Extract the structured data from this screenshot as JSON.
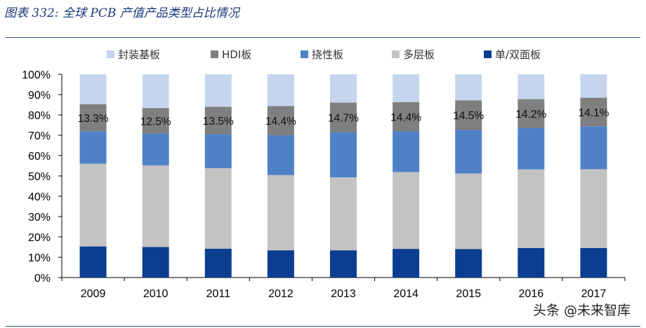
{
  "figure_title": "图表 332: 全球 PCB 产值产品类型占比情况",
  "watermark": "头条 @未来智库",
  "chart_data": {
    "type": "bar",
    "stacked": true,
    "categories": [
      "2009",
      "2010",
      "2011",
      "2012",
      "2013",
      "2014",
      "2015",
      "2016",
      "2017"
    ],
    "ylim": [
      0,
      100
    ],
    "yticks": [
      "0%",
      "10%",
      "20%",
      "30%",
      "40%",
      "50%",
      "60%",
      "70%",
      "80%",
      "90%",
      "100%"
    ],
    "legend_position": "top",
    "grid": false,
    "series": [
      {
        "name": "单/双面板",
        "color": "#0b3d91",
        "values": [
          15.3,
          15.0,
          14.2,
          13.4,
          13.4,
          14.1,
          14.0,
          14.5,
          14.5
        ]
      },
      {
        "name": "多层板",
        "color": "#c3c3c3",
        "values": [
          40.7,
          40.2,
          39.6,
          37.0,
          35.9,
          37.8,
          37.2,
          38.7,
          38.8
        ]
      },
      {
        "name": "挠性板",
        "color": "#4f81c7",
        "values": [
          16.0,
          15.7,
          16.7,
          19.6,
          22.1,
          20.0,
          21.5,
          20.4,
          21.1
        ]
      },
      {
        "name": "HDI板",
        "color": "#7f7f7f",
        "values": [
          13.3,
          12.5,
          13.5,
          14.4,
          14.7,
          14.4,
          14.5,
          14.2,
          14.1
        ]
      },
      {
        "name": "封装基板",
        "color": "#c6d5ee",
        "values": [
          14.7,
          16.6,
          16.0,
          15.6,
          13.9,
          13.7,
          12.8,
          12.2,
          11.5
        ]
      }
    ],
    "legend_order": [
      "封装基板",
      "HDI板",
      "挠性板",
      "多层板",
      "单/双面板"
    ],
    "data_labels": {
      "series": "HDI板",
      "values": [
        "13.3%",
        "12.5%",
        "13.5%",
        "14.4%",
        "14.7%",
        "14.4%",
        "14.5%",
        "14.2%",
        "14.1%"
      ]
    }
  }
}
